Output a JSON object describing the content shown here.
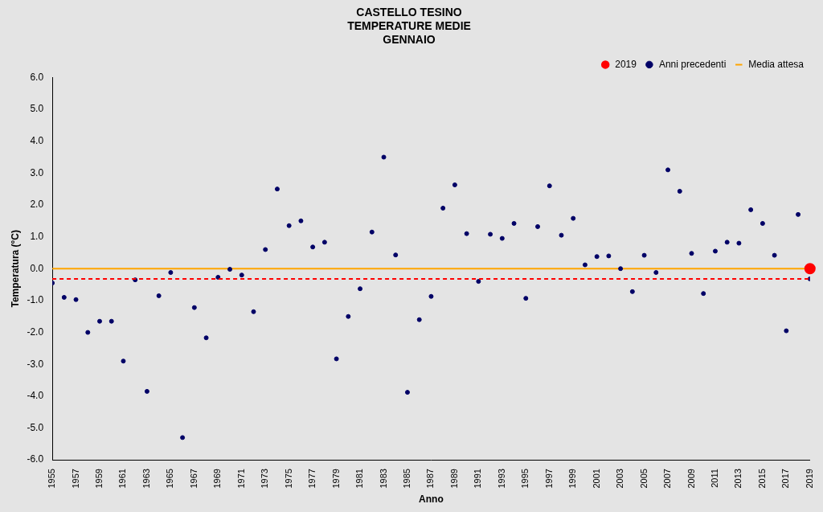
{
  "chart_data": {
    "type": "scatter",
    "title": [
      "CASTELLO TESINO",
      "TEMPERATURE MEDIE",
      "GENNAIO"
    ],
    "x_label": "Anno",
    "y_label": "Temperatura (°C)",
    "xlim": [
      1955,
      2019
    ],
    "xticks": [
      1955,
      1957,
      1959,
      1961,
      1963,
      1965,
      1967,
      1969,
      1971,
      1973,
      1975,
      1977,
      1979,
      1981,
      1983,
      1985,
      1987,
      1989,
      1991,
      1993,
      1995,
      1997,
      1999,
      2001,
      2003,
      2005,
      2007,
      2009,
      2011,
      2013,
      2015,
      2017,
      2019
    ],
    "ylim": [
      -6,
      6
    ],
    "yticks": [
      {
        "value": -6,
        "label": "-6.0"
      },
      {
        "value": -5,
        "label": "-5.0"
      },
      {
        "value": -4,
        "label": "-4.0"
      },
      {
        "value": -3,
        "label": "-3.0"
      },
      {
        "value": -2,
        "label": "-2.0"
      },
      {
        "value": -1,
        "label": "-1.0"
      },
      {
        "value": 0,
        "label": "0.0"
      },
      {
        "value": 1,
        "label": "1.0"
      },
      {
        "value": 2,
        "label": "2.0"
      },
      {
        "value": 3,
        "label": "3.0"
      },
      {
        "value": 4,
        "label": "4.0"
      },
      {
        "value": 5,
        "label": "5.0"
      },
      {
        "value": 6,
        "label": "6.0"
      }
    ],
    "grid": false,
    "legend": "top right",
    "series": [
      {
        "name": "2019",
        "type": "line",
        "color": "#ff0000",
        "line_style": "dashed",
        "marker": "circle",
        "x": [
          1955,
          2019,
          2019
        ],
        "values": [
          -0.32,
          -0.32,
          0.0
        ]
      },
      {
        "name": "Anni precedenti",
        "type": "scatter",
        "color": "#000066",
        "marker": "circle",
        "x": [
          1955,
          1956,
          1957,
          1958,
          1959,
          1960,
          1961,
          1962,
          1963,
          1964,
          1965,
          1966,
          1967,
          1968,
          1969,
          1970,
          1971,
          1972,
          1973,
          1974,
          1975,
          1976,
          1977,
          1978,
          1979,
          1980,
          1981,
          1982,
          1983,
          1984,
          1985,
          1986,
          1987,
          1988,
          1989,
          1990,
          1991,
          1992,
          1993,
          1994,
          1995,
          1996,
          1997,
          1998,
          1999,
          2000,
          2001,
          2002,
          2003,
          2004,
          2005,
          2006,
          2007,
          2008,
          2009,
          2010,
          2011,
          2012,
          2013,
          2014,
          2015,
          2016,
          2017,
          2018,
          2019
        ],
        "values": [
          -0.45,
          -0.9,
          -0.97,
          -2.0,
          -1.65,
          -1.65,
          -2.9,
          -0.35,
          -3.85,
          -0.85,
          -0.12,
          -5.3,
          -1.22,
          -2.17,
          -0.27,
          -0.02,
          -0.2,
          -1.35,
          0.6,
          2.5,
          1.35,
          1.5,
          0.68,
          0.83,
          -2.83,
          -1.5,
          -0.63,
          1.15,
          3.5,
          0.43,
          -3.88,
          -1.6,
          -0.87,
          1.9,
          2.63,
          1.1,
          -0.4,
          1.08,
          0.95,
          1.42,
          -0.93,
          1.32,
          2.6,
          1.05,
          1.58,
          0.12,
          0.38,
          0.4,
          0.0,
          -0.72,
          0.42,
          -0.12,
          3.1,
          2.43,
          0.48,
          -0.78,
          0.55,
          0.83,
          0.8,
          1.85,
          1.42,
          0.42,
          -1.95,
          1.7,
          -0.32
        ]
      },
      {
        "name": "Media attesa",
        "type": "line",
        "color": "#ffa500",
        "line_style": "solid",
        "marker": "none",
        "x": [
          1955,
          2019
        ],
        "values": [
          0.0,
          0.0
        ]
      }
    ]
  }
}
